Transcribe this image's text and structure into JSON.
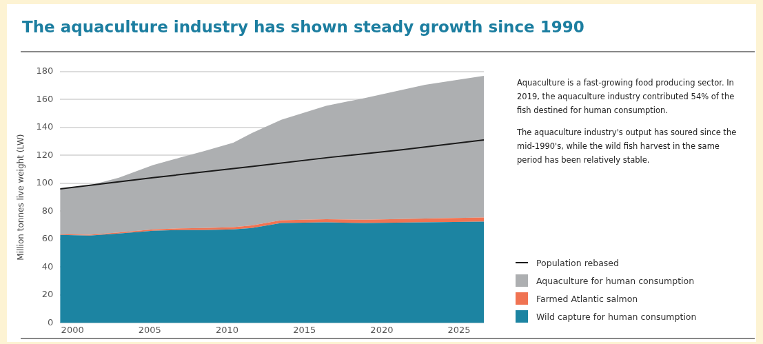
{
  "chart_data": {
    "type": "area",
    "title": "The aquaculture industry has shown steady growth since 1990",
    "ylabel": "Million tonnes live weight (LW)",
    "stacked": true,
    "grid": "y",
    "legend": "bottom right",
    "xlim": [
      1999.2,
      2026.6
    ],
    "xticks": [
      2000,
      2005,
      2010,
      2015,
      2020,
      2025
    ],
    "ylim": [
      0,
      180
    ],
    "yticks": [
      0,
      20,
      40,
      60,
      80,
      100,
      120,
      140,
      160,
      180
    ],
    "series": [
      {
        "name": "Wild capture for human consumption",
        "type": "area",
        "color": "#1c84a2",
        "x": [
          1999.2,
          2001.1,
          2003,
          2005.2,
          2007,
          2008.5,
          2010.4,
          2011.6,
          2013.5,
          2016.4,
          2018.9,
          2022.8,
          2026.6
        ],
        "values": [
          63,
          62.5,
          64,
          66,
          66.5,
          66.5,
          67,
          68,
          71.5,
          72,
          71.5,
          72,
          72.5
        ]
      },
      {
        "name": "Farmed Atlantic salmon",
        "type": "area",
        "color": "#f07352",
        "x": [
          1999.2,
          2001.1,
          2003,
          2005.2,
          2007,
          2008.5,
          2010.4,
          2011.6,
          2013.5,
          2016.4,
          2018.9,
          2022.8,
          2026.6
        ],
        "values": [
          0.5,
          0.6,
          0.7,
          1,
          1.2,
          1.4,
          1.6,
          1.8,
          2,
          2.2,
          2.4,
          2.8,
          3
        ]
      },
      {
        "name": "Aquaculture for human consumption",
        "type": "area",
        "color": "#adafb1",
        "x": [
          1999.2,
          2001.1,
          2003,
          2005.2,
          2007,
          2008.5,
          2010.4,
          2011.6,
          2013.5,
          2016.4,
          2018.9,
          2022.8,
          2026.6
        ],
        "values": [
          32.5,
          35.4,
          39.3,
          46,
          50.8,
          55.1,
          60.4,
          66.2,
          72,
          81.3,
          87.1,
          95.7,
          101.5
        ]
      },
      {
        "name": "Population rebased",
        "type": "line",
        "color": "#1a1a1a",
        "x": [
          1999.2,
          2005.2,
          2011.6,
          2016.6,
          2021.3,
          2026.6
        ],
        "values": [
          96,
          104,
          112,
          118.5,
          124,
          131
        ]
      }
    ],
    "annotations": [
      "Aquaculture is a fast-growing food producing sector. In 2019, the aquaculture industry contributed 54% of the fish destined for human consumption.",
      "The aquaculture industry's output has soured since the mid-1990's, while the wild fish harvest in the same period has been relatively stable."
    ]
  }
}
